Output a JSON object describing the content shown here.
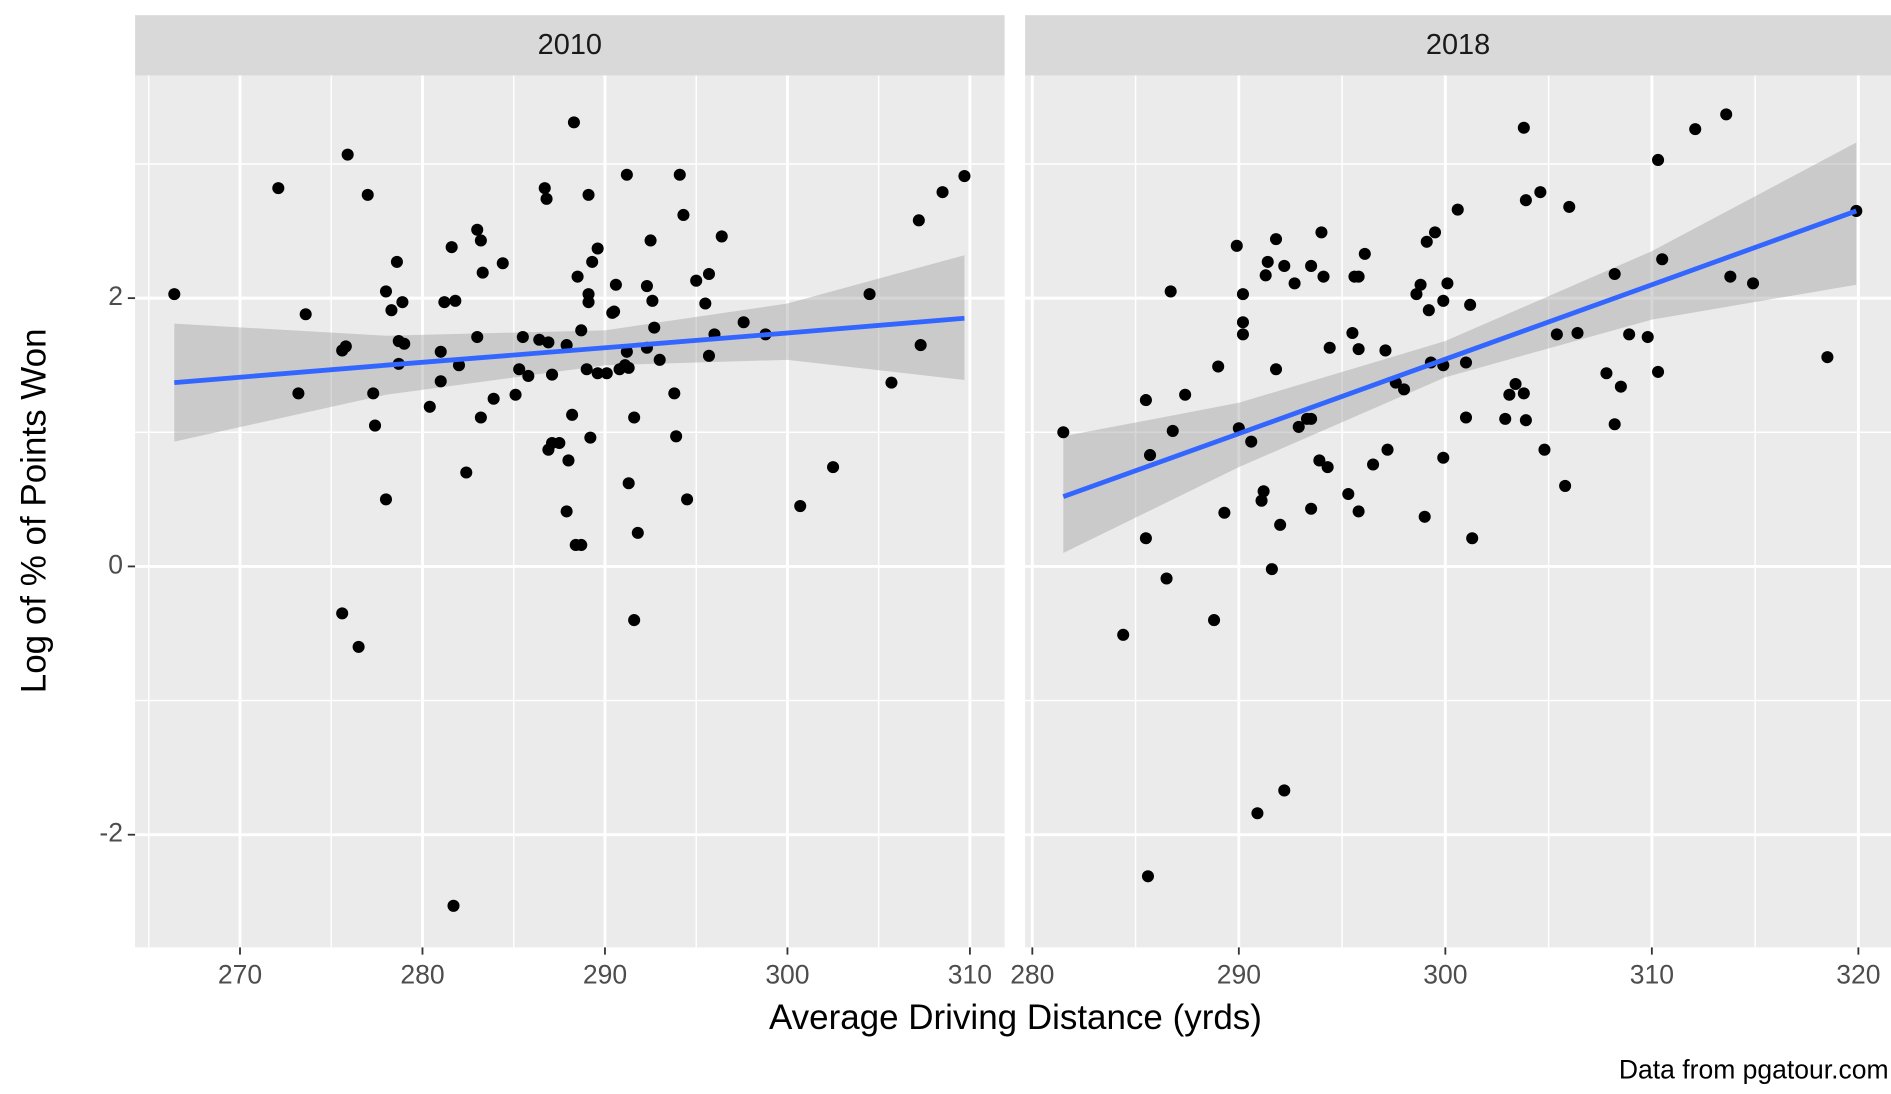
{
  "chart_data": [
    {
      "type": "scatter",
      "title": "2010",
      "xlim": [
        264.25,
        311.9
      ],
      "ylim": [
        -2.84,
        3.66
      ],
      "xticks": [
        270,
        280,
        290,
        300,
        310
      ],
      "x_minor_ticks": [
        265,
        275,
        285,
        295,
        305
      ],
      "yticks": [
        -2,
        0,
        2
      ],
      "y_minor_ticks": [
        -1,
        1,
        3
      ],
      "grid": true,
      "color": "#000000",
      "x": [
        266.4,
        272.1,
        275.9,
        273.6,
        273.2,
        275.6,
        275.8,
        275.6,
        276.5,
        277.0,
        277.3,
        277.4,
        278.0,
        278.0,
        278.3,
        278.6,
        278.7,
        279.0,
        278.7,
        278.9,
        280.4,
        281.0,
        281.0,
        281.2,
        281.6,
        281.8,
        282.0,
        281.7,
        282.4,
        283.0,
        283.2,
        283.0,
        283.3,
        283.2,
        283.9,
        284.4,
        285.1,
        285.3,
        285.5,
        285.8,
        286.4,
        286.7,
        286.8,
        286.9,
        286.9,
        287.1,
        287.1,
        287.5,
        287.9,
        287.9,
        288.0,
        288.2,
        288.3,
        288.4,
        288.7,
        288.5,
        288.7,
        289.0,
        289.1,
        289.1,
        289.1,
        289.2,
        289.3,
        289.6,
        289.6,
        290.1,
        290.4,
        290.5,
        290.6,
        290.8,
        291.1,
        291.2,
        291.2,
        291.3,
        291.3,
        291.6,
        291.6,
        291.8,
        292.3,
        292.3,
        292.5,
        292.6,
        292.7,
        293.0,
        293.8,
        293.9,
        294.1,
        294.3,
        294.5,
        295.0,
        295.5,
        295.7,
        295.7,
        296.0,
        296.4,
        297.6,
        298.8,
        300.7,
        302.5,
        304.5,
        305.7,
        307.2,
        307.3,
        308.5,
        309.7
      ],
      "values": [
        2.03,
        2.82,
        3.07,
        1.88,
        1.29,
        1.61,
        1.64,
        -0.35,
        -0.6,
        2.77,
        1.29,
        1.05,
        0.5,
        2.05,
        1.91,
        2.27,
        1.68,
        1.66,
        1.51,
        1.97,
        1.19,
        1.6,
        1.38,
        1.97,
        2.38,
        1.98,
        1.5,
        -2.53,
        0.7,
        2.51,
        2.43,
        1.71,
        2.19,
        1.11,
        1.25,
        2.26,
        1.28,
        1.47,
        1.71,
        1.42,
        1.69,
        2.82,
        2.74,
        1.67,
        0.87,
        0.92,
        1.43,
        0.92,
        1.65,
        0.41,
        0.79,
        1.13,
        3.31,
        0.16,
        0.16,
        2.16,
        1.76,
        1.47,
        2.77,
        1.97,
        2.03,
        0.96,
        2.27,
        2.37,
        1.44,
        1.44,
        1.89,
        1.9,
        2.1,
        1.47,
        1.5,
        1.6,
        2.92,
        0.62,
        1.48,
        1.11,
        -0.4,
        0.25,
        2.09,
        1.63,
        2.43,
        1.98,
        1.78,
        1.54,
        1.29,
        0.97,
        2.92,
        2.62,
        0.5,
        2.13,
        1.96,
        2.18,
        1.57,
        1.73,
        2.46,
        1.82,
        1.73,
        0.45,
        0.74,
        2.03,
        1.37,
        2.58,
        1.65,
        2.79,
        2.91
      ],
      "fit": {
        "color": "#3366ff",
        "band_color": "#999999",
        "x": [
          266.4,
          278,
          290,
          300,
          309.7
        ],
        "values": [
          1.37,
          1.5,
          1.63,
          1.74,
          1.85
        ],
        "lower": [
          0.93,
          1.28,
          1.5,
          1.54,
          1.39
        ],
        "upper": [
          1.81,
          1.72,
          1.76,
          1.96,
          2.32
        ]
      }
    },
    {
      "type": "scatter",
      "title": "2018",
      "xlim": [
        279.65,
        321.58
      ],
      "ylim": [
        -2.84,
        3.66
      ],
      "xticks": [
        280,
        290,
        300,
        310,
        320
      ],
      "x_minor_ticks": [
        285,
        295,
        305,
        315
      ],
      "yticks": [
        -2,
        0,
        2
      ],
      "y_minor_ticks": [
        -1,
        1,
        3
      ],
      "grid": true,
      "color": "#000000",
      "x": [
        281.5,
        284.4,
        285.5,
        285.5,
        285.6,
        285.7,
        286.5,
        286.7,
        286.8,
        287.4,
        288.8,
        289.0,
        289.3,
        289.9,
        290.0,
        290.2,
        290.2,
        290.2,
        290.6,
        290.9,
        291.1,
        291.2,
        291.3,
        291.4,
        291.6,
        291.8,
        291.8,
        292.0,
        292.2,
        292.2,
        292.7,
        292.9,
        293.3,
        293.5,
        293.5,
        293.5,
        293.9,
        294.0,
        294.1,
        294.3,
        294.4,
        295.3,
        295.5,
        295.6,
        295.8,
        295.8,
        295.8,
        296.1,
        296.5,
        297.1,
        297.2,
        297.6,
        298.0,
        298.6,
        298.8,
        299.0,
        299.1,
        299.2,
        299.3,
        299.5,
        299.9,
        299.9,
        299.9,
        300.1,
        300.6,
        301.0,
        301.0,
        301.2,
        301.3,
        302.9,
        303.1,
        303.4,
        303.8,
        303.8,
        303.9,
        303.9,
        304.6,
        304.8,
        305.4,
        305.8,
        306.0,
        306.4,
        307.8,
        308.2,
        308.2,
        308.5,
        308.9,
        309.8,
        310.3,
        310.3,
        310.5,
        312.1,
        313.6,
        313.8,
        314.9,
        318.5,
        319.9
      ],
      "values": [
        1.0,
        -0.51,
        1.24,
        0.21,
        -2.31,
        0.83,
        -0.09,
        2.05,
        1.01,
        1.28,
        -0.4,
        1.49,
        0.4,
        2.39,
        1.03,
        1.82,
        1.73,
        2.03,
        0.93,
        -1.84,
        0.49,
        0.56,
        2.17,
        2.27,
        -0.02,
        1.47,
        2.44,
        0.31,
        -1.67,
        2.24,
        2.11,
        1.04,
        1.1,
        1.1,
        2.24,
        0.43,
        0.79,
        2.49,
        2.16,
        0.74,
        1.63,
        0.54,
        1.74,
        2.16,
        2.16,
        1.62,
        0.41,
        2.33,
        0.76,
        1.61,
        0.87,
        1.37,
        1.32,
        2.03,
        2.1,
        0.37,
        2.42,
        1.91,
        1.52,
        2.49,
        1.5,
        1.98,
        0.81,
        2.11,
        2.66,
        1.52,
        1.11,
        1.95,
        0.21,
        1.1,
        1.28,
        1.36,
        1.29,
        3.27,
        1.09,
        2.73,
        2.79,
        0.87,
        1.73,
        0.6,
        2.68,
        1.74,
        1.44,
        2.18,
        1.06,
        1.34,
        1.73,
        1.71,
        3.03,
        1.45,
        2.29,
        3.26,
        3.37,
        2.16,
        2.11,
        1.56,
        2.65
      ],
      "fit": {
        "color": "#3366ff",
        "band_color": "#999999",
        "x": [
          281.5,
          290,
          300,
          310,
          319.9
        ],
        "values": [
          0.52,
          0.99,
          1.545,
          2.1,
          2.65
        ],
        "lower": [
          0.1,
          0.74,
          1.41,
          1.84,
          2.1
        ],
        "upper": [
          0.97,
          1.22,
          1.68,
          2.35,
          3.16
        ]
      }
    }
  ],
  "x_label": "Average Driving Distance (yrds)",
  "y_label": "Log of % of Points Won",
  "caption": "Data from pgatour.com"
}
